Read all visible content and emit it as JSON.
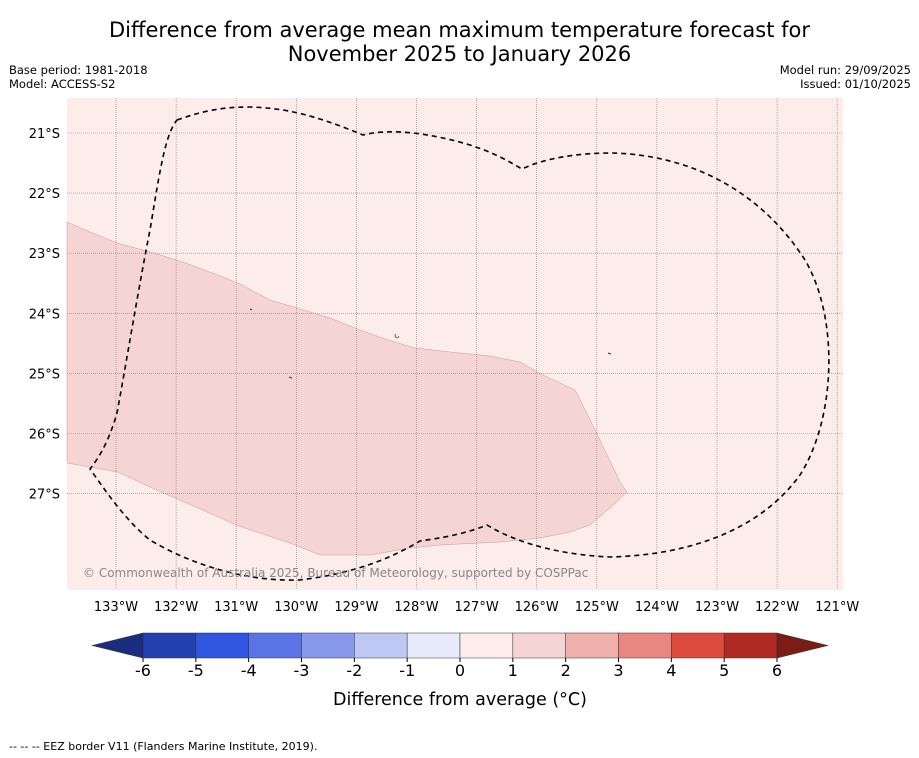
{
  "title_line1": "Difference from average mean maximum temperature forecast for",
  "title_line2": "November 2025 to January 2026",
  "base_period": "Base period: 1981-2018",
  "model": "Model: ACCESS-S2",
  "model_run": "Model run: 29/09/2025",
  "issued": "Issued: 01/10/2025",
  "copyright": "© Commonwealth of Australia 2025, Bureau of Meteorology, supported by COSPPac",
  "lat_labels": [
    "21°S",
    "22°S",
    "23°S",
    "24°S",
    "25°S",
    "26°S",
    "27°S"
  ],
  "lon_labels": [
    "133°W",
    "132°W",
    "131°W",
    "130°W",
    "129°W",
    "128°W",
    "127°W",
    "126°W",
    "125°W",
    "124°W",
    "123°W",
    "122°W",
    "121°W"
  ],
  "colorbar": {
    "label": "Difference from average (°C)",
    "ticks": [
      "-6",
      "-5",
      "-4",
      "-3",
      "-2",
      "-1",
      "0",
      "1",
      "2",
      "3",
      "4",
      "5",
      "6"
    ],
    "colors": [
      "#2340b0",
      "#3055e0",
      "#5a74e6",
      "#8899ec",
      "#bfc8f5",
      "#e8ebfb",
      "#fcecea",
      "#f5d4d4",
      "#eeb0ab",
      "#e8877f",
      "#dd4b3e",
      "#ae2a22"
    ],
    "under_color": "#1b2d7e",
    "over_color": "#7b1d16"
  },
  "map_colors": {
    "background_class": "#fcecea",
    "anomaly_class": "#f5d4d4",
    "eez_line": "#000000"
  },
  "legend_note": "--  --  -- EEZ border V11 (Flanders Marine Institute, 2019)."
}
